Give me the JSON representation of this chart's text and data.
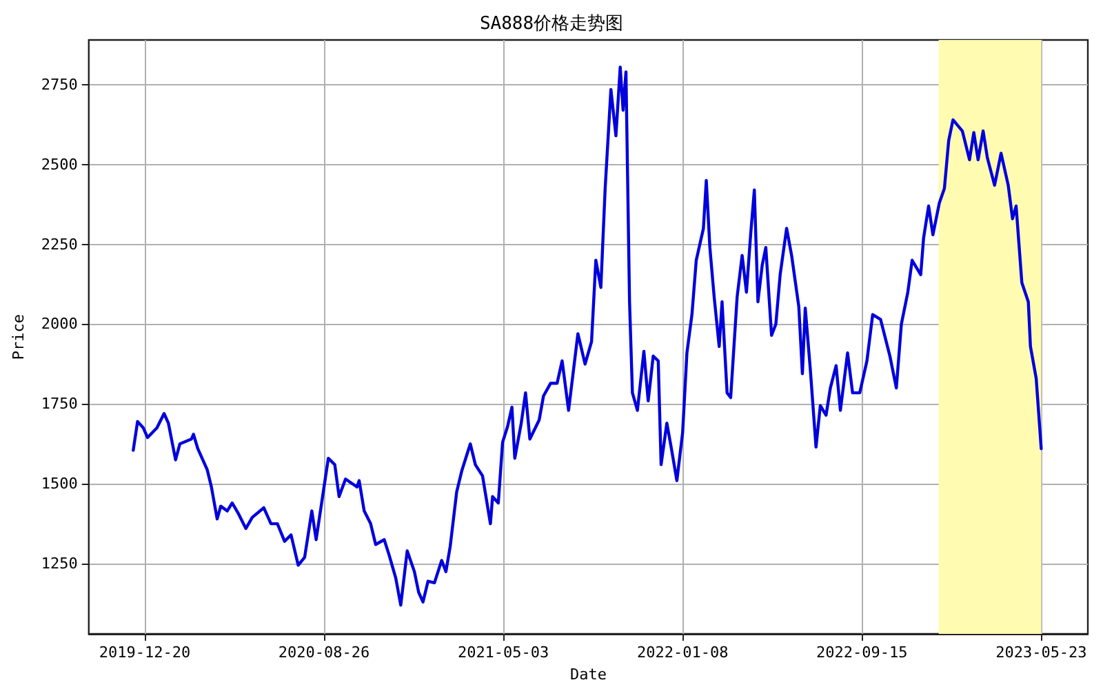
{
  "chart_data": {
    "type": "line",
    "title": "SA888价格走势图",
    "xlabel": "Date",
    "ylabel": "Price",
    "x": [
      "2019-12-04",
      "2019-12-10",
      "2019-12-18",
      "2019-12-24",
      "2020-01-06",
      "2020-01-16",
      "2020-01-22",
      "2020-02-01",
      "2020-02-07",
      "2020-02-23",
      "2020-02-26",
      "2020-03-03",
      "2020-03-16",
      "2020-03-22",
      "2020-03-30",
      "2020-04-04",
      "2020-04-13",
      "2020-04-20",
      "2020-04-29",
      "2020-05-09",
      "2020-05-18",
      "2020-06-03",
      "2020-06-13",
      "2020-06-22",
      "2020-07-02",
      "2020-07-11",
      "2020-07-21",
      "2020-07-30",
      "2020-08-09",
      "2020-08-15",
      "2020-08-26",
      "2020-09-01",
      "2020-09-10",
      "2020-09-16",
      "2020-09-25",
      "2020-10-11",
      "2020-10-14",
      "2020-10-21",
      "2020-10-30",
      "2020-11-06",
      "2020-11-18",
      "2020-11-25",
      "2020-12-04",
      "2020-12-11",
      "2020-12-20",
      "2020-12-30",
      "2021-01-05",
      "2021-01-11",
      "2021-01-18",
      "2021-01-27",
      "2021-02-06",
      "2021-02-12",
      "2021-02-18",
      "2021-02-27",
      "2021-03-06",
      "2021-03-13",
      "2021-03-18",
      "2021-03-25",
      "2021-04-04",
      "2021-04-15",
      "2021-04-18",
      "2021-04-26",
      "2021-05-02",
      "2021-05-09",
      "2021-05-15",
      "2021-05-19",
      "2021-05-28",
      "2021-06-03",
      "2021-06-09",
      "2021-06-22",
      "2021-06-28",
      "2021-07-08",
      "2021-07-17",
      "2021-07-24",
      "2021-08-02",
      "2021-08-15",
      "2021-08-25",
      "2021-09-03",
      "2021-09-09",
      "2021-09-16",
      "2021-09-22",
      "2021-09-30",
      "2021-10-07",
      "2021-10-13",
      "2021-10-17",
      "2021-10-21",
      "2021-10-26",
      "2021-10-30",
      "2021-11-06",
      "2021-11-15",
      "2021-11-21",
      "2021-11-28",
      "2021-12-05",
      "2021-12-09",
      "2021-12-17",
      "2021-12-23",
      "2021-12-31",
      "2022-01-08",
      "2022-01-14",
      "2022-01-21",
      "2022-01-27",
      "2022-02-06",
      "2022-02-10",
      "2022-02-15",
      "2022-02-21",
      "2022-02-28",
      "2022-03-04",
      "2022-03-11",
      "2022-03-16",
      "2022-03-25",
      "2022-04-01",
      "2022-04-07",
      "2022-04-13",
      "2022-04-18",
      "2022-04-23",
      "2022-04-29",
      "2022-05-04",
      "2022-05-12",
      "2022-05-18",
      "2022-05-24",
      "2022-06-02",
      "2022-06-09",
      "2022-06-19",
      "2022-06-24",
      "2022-06-28",
      "2022-07-05",
      "2022-07-13",
      "2022-07-19",
      "2022-07-27",
      "2022-08-02",
      "2022-08-10",
      "2022-08-16",
      "2022-08-26",
      "2022-09-02",
      "2022-09-12",
      "2022-09-22",
      "2022-09-30",
      "2022-10-11",
      "2022-10-24",
      "2022-11-02",
      "2022-11-09",
      "2022-11-18",
      "2022-11-24",
      "2022-12-06",
      "2022-12-10",
      "2022-12-17",
      "2022-12-23",
      "2023-01-01",
      "2023-01-08",
      "2023-01-14",
      "2023-01-20",
      "2023-02-02",
      "2023-02-12",
      "2023-02-18",
      "2023-02-24",
      "2023-03-03",
      "2023-03-09",
      "2023-03-19",
      "2023-03-28",
      "2023-04-07",
      "2023-04-13",
      "2023-04-18",
      "2023-04-26",
      "2023-05-05",
      "2023-05-08",
      "2023-05-16",
      "2023-05-23"
    ],
    "series": [
      {
        "color": "#0000dd",
        "values": [
          1605,
          1695,
          1675,
          1645,
          1675,
          1720,
          1690,
          1575,
          1625,
          1640,
          1655,
          1610,
          1545,
          1490,
          1390,
          1430,
          1415,
          1440,
          1405,
          1360,
          1395,
          1425,
          1375,
          1375,
          1320,
          1340,
          1245,
          1270,
          1415,
          1325,
          1490,
          1580,
          1560,
          1460,
          1515,
          1490,
          1510,
          1415,
          1375,
          1310,
          1325,
          1275,
          1205,
          1120,
          1290,
          1225,
          1160,
          1130,
          1195,
          1190,
          1260,
          1225,
          1305,
          1475,
          1540,
          1590,
          1625,
          1560,
          1525,
          1375,
          1460,
          1440,
          1630,
          1680,
          1740,
          1580,
          1690,
          1785,
          1640,
          1700,
          1775,
          1815,
          1815,
          1885,
          1730,
          1970,
          1875,
          1945,
          2200,
          2115,
          2425,
          2735,
          2590,
          2805,
          2670,
          2790,
          2070,
          1785,
          1730,
          1915,
          1760,
          1900,
          1885,
          1560,
          1690,
          1615,
          1510,
          1660,
          1910,
          2030,
          2200,
          2300,
          2450,
          2240,
          2085,
          1930,
          2070,
          1785,
          1770,
          2085,
          2215,
          2100,
          2285,
          2420,
          2070,
          2185,
          2240,
          1965,
          2000,
          2155,
          2300,
          2215,
          2055,
          1845,
          2050,
          1860,
          1615,
          1745,
          1715,
          1800,
          1870,
          1730,
          1910,
          1785,
          1785,
          1885,
          2030,
          2015,
          1900,
          1800,
          2000,
          2100,
          2200,
          2155,
          2270,
          2370,
          2280,
          2380,
          2425,
          2575,
          2640,
          2605,
          2515,
          2600,
          2515,
          2605,
          2520,
          2435,
          2535,
          2435,
          2330,
          2370,
          2130,
          2070,
          1930,
          1830,
          1610
        ]
      }
    ],
    "xlim": [
      "2019-10-03",
      "2023-07-27"
    ],
    "xticks": [
      "2019-12-20",
      "2020-08-26",
      "2021-05-03",
      "2022-01-08",
      "2022-09-15",
      "2023-05-23"
    ],
    "ylim": [
      1030,
      2890
    ],
    "yticks": [
      1250,
      1500,
      1750,
      2000,
      2250,
      2500,
      2750
    ],
    "bands": [
      {
        "axis": "x",
        "from": "2022-12-31",
        "to": "2023-05-23",
        "color": "#fffbb0"
      }
    ],
    "grid": true,
    "marker": "none",
    "line_style": "solid"
  }
}
